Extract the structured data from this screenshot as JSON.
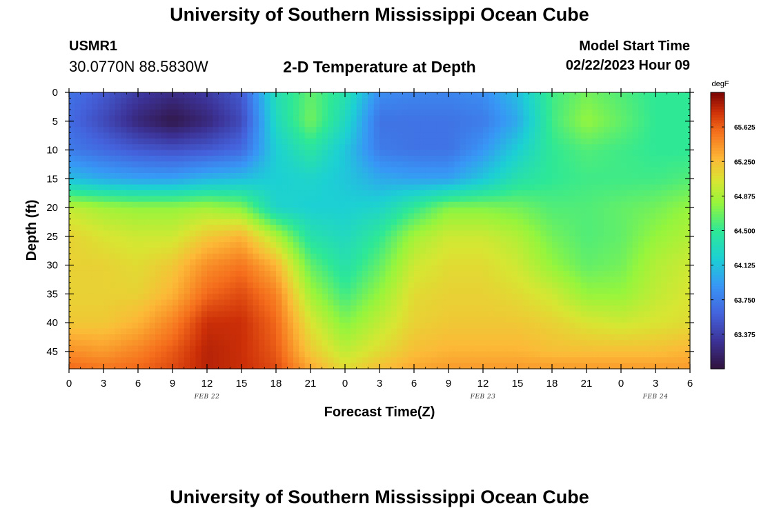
{
  "header": {
    "title": "University of Southern Mississippi Ocean Cube",
    "station_id": "USMR1",
    "station_coords": "30.0770N  88.5830W",
    "subtitle": "2-D Temperature at Depth",
    "model_start_label": "Model Start Time",
    "model_start_value": "02/22/2023 Hour 09"
  },
  "footer": {
    "title": "University of Southern Mississippi Ocean Cube"
  },
  "chart_data": {
    "type": "heatmap",
    "title": "2-D Temperature at Depth",
    "xlabel": "Forecast Time(Z)",
    "ylabel": "Depth (ft)",
    "x_range_hours": [
      0,
      54
    ],
    "x_tick_hours": [
      0,
      3,
      6,
      9,
      12,
      15,
      18,
      21,
      24,
      27,
      30,
      33,
      36,
      39,
      42,
      45,
      48,
      51,
      54
    ],
    "x_tick_labels": [
      "0",
      "3",
      "6",
      "9",
      "12",
      "15",
      "18",
      "21",
      "0",
      "3",
      "6",
      "9",
      "12",
      "15",
      "18",
      "21",
      "0",
      "3",
      "6"
    ],
    "date_labels": [
      {
        "text": "FEB 22",
        "hour": 12
      },
      {
        "text": "FEB 23",
        "hour": 36
      },
      {
        "text": "FEB 24",
        "hour": 51
      }
    ],
    "y_range": [
      0,
      48
    ],
    "y_ticks": [
      0,
      5,
      10,
      15,
      20,
      25,
      30,
      35,
      40,
      45
    ],
    "y_inverted": true,
    "colorbar": {
      "unit": "degF",
      "range": [
        63.0,
        66.0
      ],
      "tick_values": [
        65.625,
        65.25,
        64.875,
        64.5,
        64.125,
        63.75,
        63.375
      ],
      "tick_labels": [
        "65.625",
        "65.250",
        "64.875",
        "64.500",
        "64.125",
        "63.750",
        "63.375"
      ]
    },
    "depth_grid": [
      0,
      5,
      10,
      15,
      20,
      25,
      30,
      35,
      40,
      45,
      48
    ],
    "time_grid": [
      0,
      3,
      6,
      9,
      12,
      15,
      18,
      21,
      24,
      27,
      30,
      33,
      36,
      39,
      42,
      45,
      48,
      51,
      54
    ],
    "temperature_grid": [
      [
        63.7,
        63.55,
        63.35,
        63.25,
        63.35,
        63.55,
        64.35,
        64.65,
        64.4,
        63.85,
        63.8,
        63.8,
        63.85,
        64.1,
        64.55,
        64.7,
        64.6,
        64.5,
        64.5
      ],
      [
        63.65,
        63.45,
        63.2,
        63.05,
        63.2,
        63.45,
        64.3,
        64.7,
        64.3,
        63.7,
        63.7,
        63.7,
        63.75,
        64.0,
        64.55,
        64.8,
        64.65,
        64.5,
        64.5
      ],
      [
        63.75,
        63.65,
        63.55,
        63.5,
        63.55,
        63.65,
        64.2,
        64.45,
        64.15,
        63.75,
        63.7,
        63.7,
        63.9,
        64.2,
        64.5,
        64.6,
        64.55,
        64.5,
        64.5
      ],
      [
        64.1,
        64.0,
        63.95,
        63.95,
        64.05,
        64.1,
        64.2,
        64.25,
        64.15,
        64.0,
        63.95,
        63.95,
        64.15,
        64.4,
        64.5,
        64.55,
        64.55,
        64.55,
        64.6
      ],
      [
        64.95,
        64.85,
        64.8,
        64.8,
        64.85,
        64.75,
        64.25,
        64.2,
        64.2,
        64.25,
        64.5,
        64.75,
        64.75,
        64.7,
        64.6,
        64.6,
        64.65,
        64.7,
        64.8
      ],
      [
        65.15,
        65.05,
        65.0,
        65.0,
        65.2,
        65.3,
        64.9,
        64.4,
        64.3,
        64.5,
        64.85,
        65.0,
        65.0,
        64.9,
        64.7,
        64.6,
        64.65,
        64.8,
        64.9
      ],
      [
        65.15,
        65.15,
        65.1,
        65.2,
        65.45,
        65.55,
        65.3,
        64.65,
        64.4,
        64.65,
        65.0,
        65.1,
        65.1,
        65.0,
        64.8,
        64.65,
        64.7,
        64.9,
        65.0
      ],
      [
        65.15,
        65.15,
        65.15,
        65.3,
        65.6,
        65.7,
        65.5,
        64.85,
        64.55,
        64.8,
        65.1,
        65.15,
        65.15,
        65.1,
        65.0,
        64.8,
        64.8,
        64.95,
        65.05
      ],
      [
        65.2,
        65.2,
        65.3,
        65.5,
        65.8,
        65.8,
        65.6,
        65.05,
        64.75,
        64.95,
        65.15,
        65.2,
        65.2,
        65.2,
        65.15,
        65.05,
        65.0,
        65.05,
        65.1
      ],
      [
        65.45,
        65.4,
        65.5,
        65.65,
        65.85,
        65.8,
        65.65,
        65.2,
        64.95,
        65.1,
        65.25,
        65.3,
        65.3,
        65.3,
        65.25,
        65.25,
        65.25,
        65.25,
        65.3
      ],
      [
        65.6,
        65.55,
        65.6,
        65.7,
        65.85,
        65.8,
        65.7,
        65.35,
        65.1,
        65.25,
        65.35,
        65.4,
        65.4,
        65.4,
        65.4,
        65.4,
        65.4,
        65.4,
        65.4
      ]
    ]
  }
}
